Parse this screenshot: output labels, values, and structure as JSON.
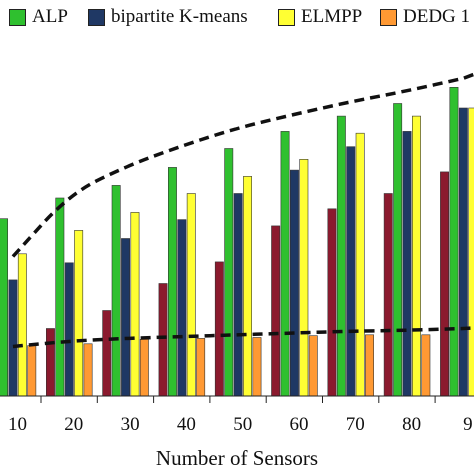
{
  "chart_data": {
    "type": "bar",
    "xlabel": "Number of Sensors",
    "categories": [
      "10",
      "20",
      "30",
      "40",
      "50",
      "60",
      "70",
      "80",
      "9"
    ],
    "series": [
      {
        "name": "",
        "color": "#8b1a2e",
        "values": [
          0.38,
          0.75,
          0.95,
          1.25,
          1.49,
          1.89,
          2.08,
          2.25,
          2.49
        ]
      },
      {
        "name": "ALP",
        "color": "#2fc02f",
        "values": [
          1.97,
          2.2,
          2.34,
          2.54,
          2.75,
          2.94,
          3.11,
          3.25,
          3.43
        ]
      },
      {
        "name": "bipartite K-means",
        "color": "#1f3864",
        "values": [
          1.29,
          1.48,
          1.75,
          1.96,
          2.25,
          2.51,
          2.77,
          2.94,
          3.2
        ]
      },
      {
        "name": "ELMPP",
        "color": "#ffff33",
        "values": [
          1.58,
          1.84,
          2.04,
          2.25,
          2.44,
          2.63,
          2.92,
          3.11,
          3.2
        ]
      },
      {
        "name": "DEDG 1",
        "color": "#ff9933",
        "values": [
          0.56,
          0.58,
          0.63,
          0.64,
          0.65,
          0.67,
          0.68,
          0.68,
          0.7
        ]
      }
    ],
    "trend_lines": [
      {
        "values": [
          1.55,
          2.24,
          2.55,
          2.78,
          2.98,
          3.13,
          3.27,
          3.39,
          3.53
        ]
      },
      {
        "values": [
          0.55,
          0.61,
          0.64,
          0.66,
          0.68,
          0.7,
          0.72,
          0.73,
          0.75
        ]
      }
    ],
    "ylim": [
      0,
      4.4
    ],
    "grid": false,
    "legend_position": "top"
  }
}
